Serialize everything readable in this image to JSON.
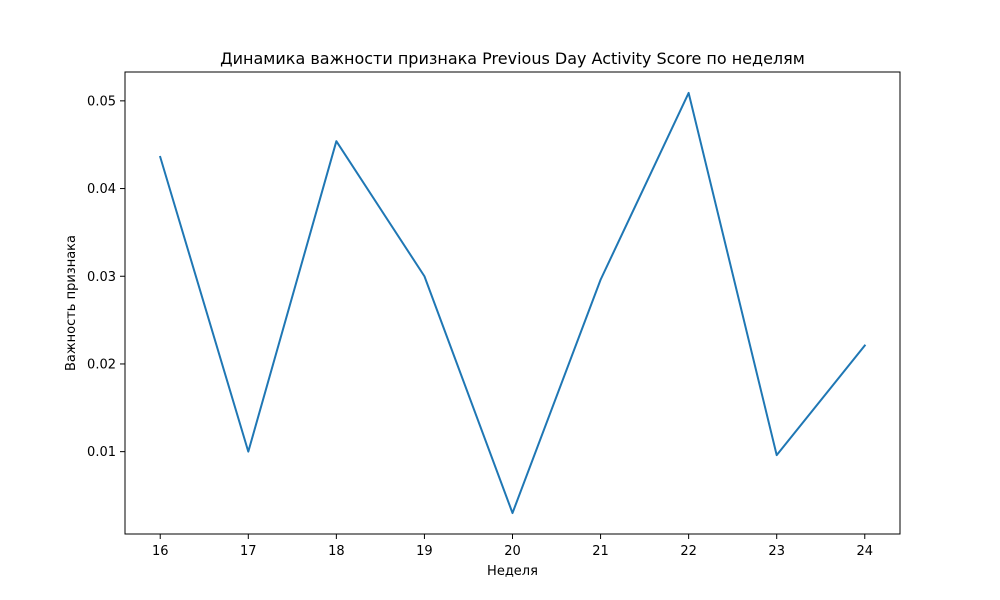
{
  "chart_data": {
    "type": "line",
    "title": "Динамика важности признака Previous Day Activity Score по неделям",
    "xlabel": "Неделя",
    "ylabel": "Важность признака",
    "x": [
      16,
      17,
      18,
      19,
      20,
      21,
      22,
      23,
      24
    ],
    "series": [
      {
        "values": [
          0.0436,
          0.01,
          0.0454,
          0.03,
          0.003,
          0.0296,
          0.0509,
          0.0096,
          0.0221
        ],
        "color": "#1f77b4"
      }
    ],
    "x_ticks": [
      "16",
      "17",
      "18",
      "19",
      "20",
      "21",
      "22",
      "23",
      "24"
    ],
    "y_ticks": [
      "0.01",
      "0.02",
      "0.03",
      "0.04",
      "0.05"
    ],
    "y_tick_values": [
      0.01,
      0.02,
      0.03,
      0.04,
      0.05
    ],
    "xlim": [
      15.6,
      24.4
    ],
    "ylim": [
      0.00061,
      0.05329
    ],
    "grid": false,
    "legend": "none"
  }
}
